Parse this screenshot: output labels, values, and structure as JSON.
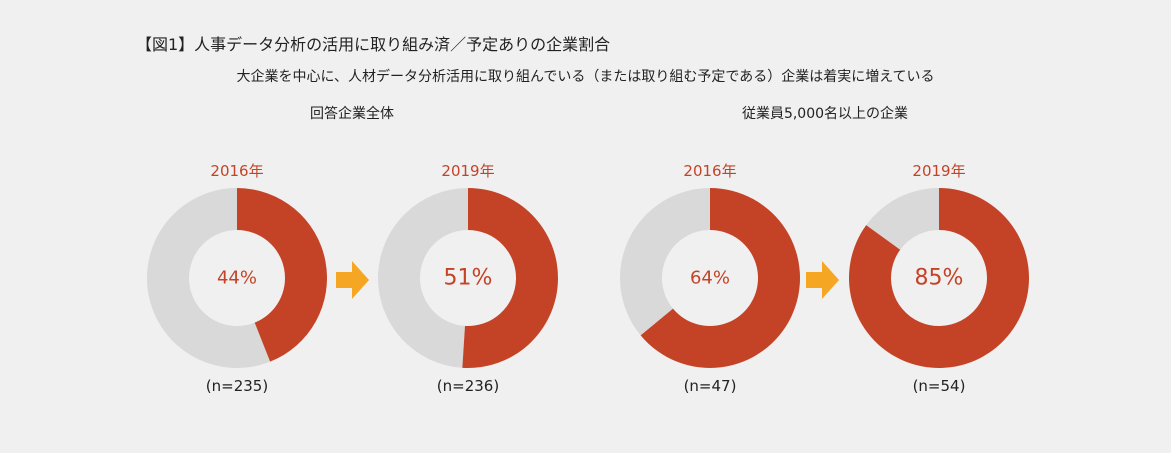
{
  "title": "【図1】人事データ分析の活用に取り組み済／予定ありの企業割合",
  "subtitle": "大企業を中心に、人材データ分析活用に取り組んでいる（または取り組む予定である）企業は着実に増えている",
  "groups": [
    {
      "label": "回答企業全体"
    },
    {
      "label": "従業員5,000名以上の企業"
    }
  ],
  "colors": {
    "filled": "#c44327",
    "remainder": "#d9d9d9",
    "arrow": "#f5a623",
    "year_text": "#c44327"
  },
  "chart_data": [
    {
      "type": "pie",
      "group": "回答企業全体",
      "year": "2016年",
      "value": 44,
      "label": "44%",
      "n": "(n=235)"
    },
    {
      "type": "pie",
      "group": "回答企業全体",
      "year": "2019年",
      "value": 51,
      "label": "51%",
      "n": "(n=236)"
    },
    {
      "type": "pie",
      "group": "従業員5,000名以上の企業",
      "year": "2016年",
      "value": 64,
      "label": "64%",
      "n": "(n=47)"
    },
    {
      "type": "pie",
      "group": "従業員5,000名以上の企業",
      "year": "2019年",
      "value": 85,
      "label": "85%",
      "n": "(n=54)"
    }
  ]
}
